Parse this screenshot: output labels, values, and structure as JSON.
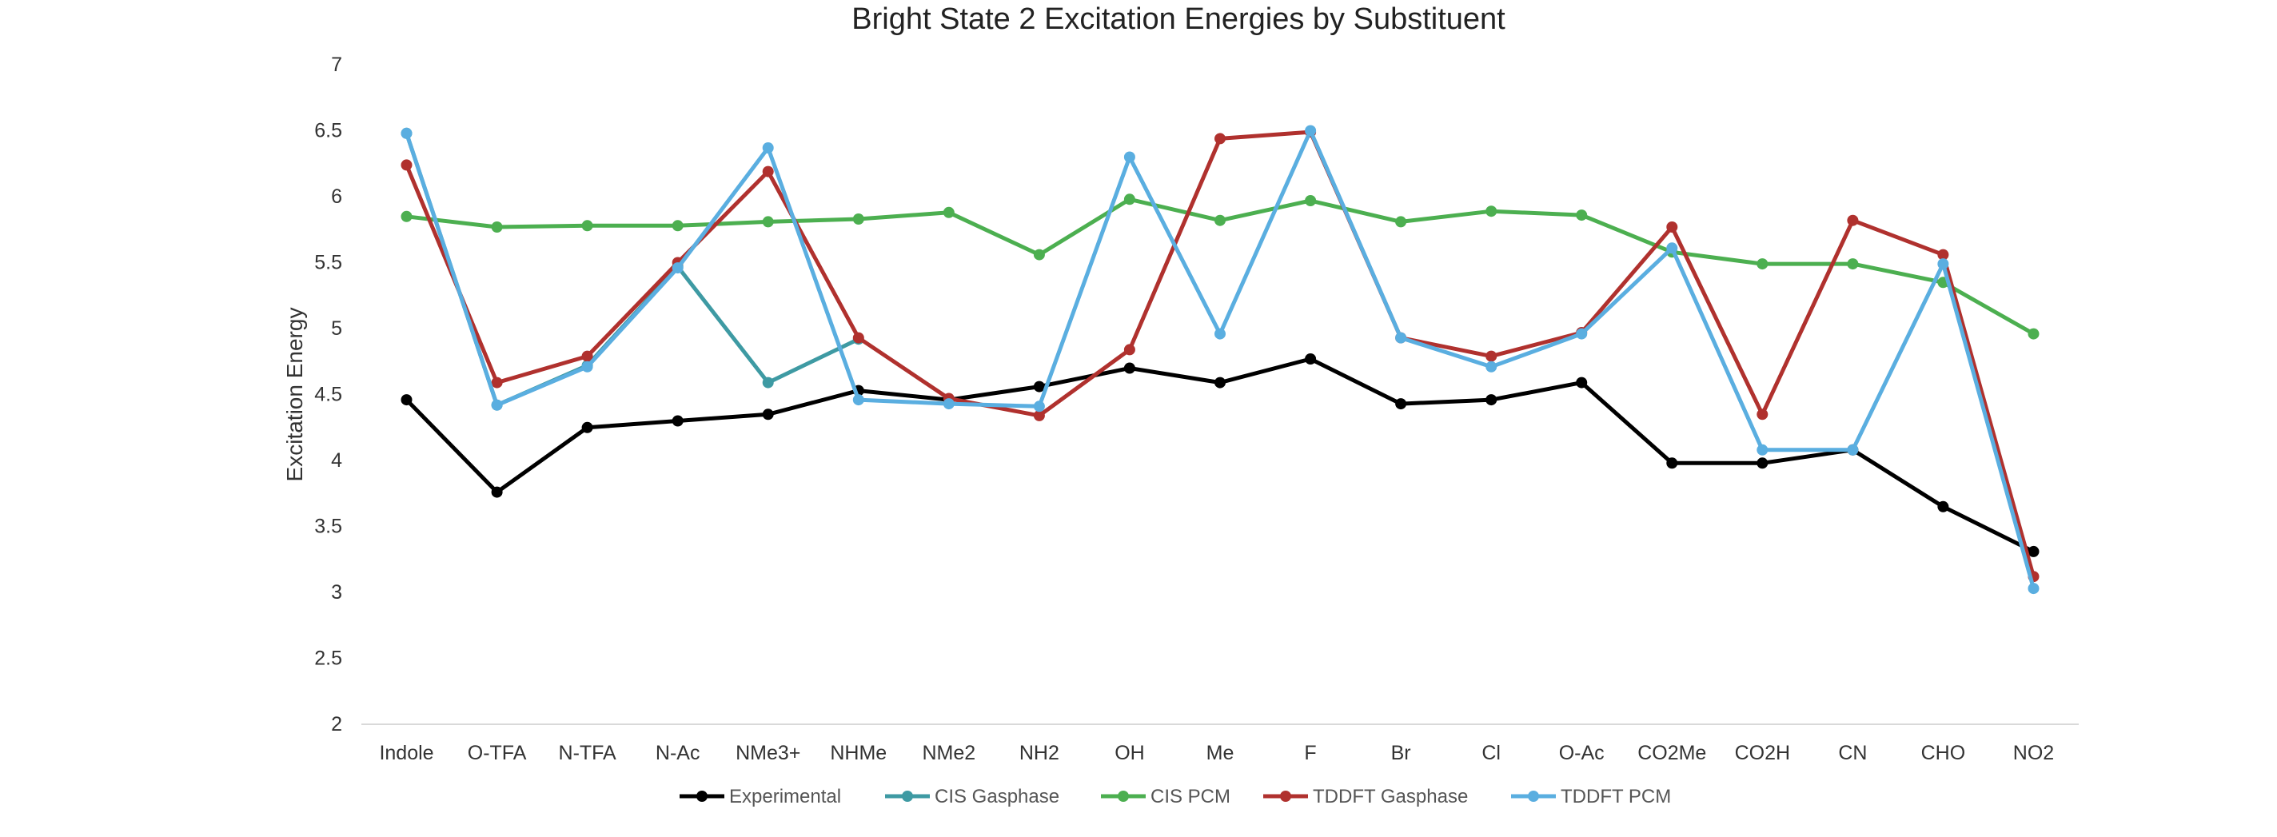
{
  "chart_data": {
    "type": "line",
    "title": "Bright State 2 Excitation Energies by Substituent",
    "xlabel": "",
    "ylabel": "Excitation Energy",
    "ylim": [
      2,
      7
    ],
    "yticks": [
      2,
      2.5,
      3,
      3.5,
      4,
      4.5,
      5,
      5.5,
      6,
      6.5,
      7
    ],
    "grid": false,
    "legend_position": "bottom",
    "categories": [
      "Indole",
      "O-TFA",
      "N-TFA",
      "N-Ac",
      "NMe3+",
      "NHMe",
      "NMe2",
      "NH2",
      "OH",
      "Me",
      "F",
      "Br",
      "Cl",
      "O-Ac",
      "CO2Me",
      "CO2H",
      "CN",
      "CHO",
      "NO2"
    ],
    "series": [
      {
        "name": "Experimental",
        "color": "#000000",
        "values": [
          4.46,
          3.76,
          4.25,
          4.3,
          4.35,
          4.53,
          4.46,
          4.56,
          4.7,
          4.59,
          4.77,
          4.43,
          4.46,
          4.59,
          3.98,
          3.98,
          4.08,
          3.65,
          3.31
        ]
      },
      {
        "name": "CIS Gasphase",
        "color": "#3e9aa3",
        "values": [
          6.48,
          4.42,
          4.72,
          5.47,
          4.59,
          4.92,
          null,
          null,
          null,
          null,
          null,
          null,
          null,
          null,
          null,
          null,
          null,
          null,
          null
        ]
      },
      {
        "name": "CIS PCM",
        "color": "#4caf50",
        "values": [
          5.85,
          5.77,
          5.78,
          5.78,
          5.81,
          5.83,
          5.88,
          5.56,
          5.98,
          5.82,
          5.97,
          5.81,
          5.89,
          5.86,
          5.58,
          5.49,
          5.49,
          5.35,
          4.96
        ]
      },
      {
        "name": "TDDFT Gasphase",
        "color": "#b0312e",
        "values": [
          6.24,
          4.59,
          4.79,
          5.5,
          6.19,
          4.93,
          4.47,
          4.34,
          4.84,
          6.44,
          6.49,
          4.93,
          4.79,
          4.97,
          5.77,
          4.35,
          5.82,
          5.56,
          3.12
        ]
      },
      {
        "name": "TDDFT PCM",
        "color": "#5aaee0",
        "values": [
          6.48,
          4.42,
          4.71,
          5.46,
          6.37,
          4.46,
          4.43,
          4.41,
          6.3,
          4.96,
          6.5,
          4.93,
          4.71,
          4.96,
          5.61,
          4.08,
          4.08,
          5.49,
          3.03
        ]
      }
    ]
  }
}
